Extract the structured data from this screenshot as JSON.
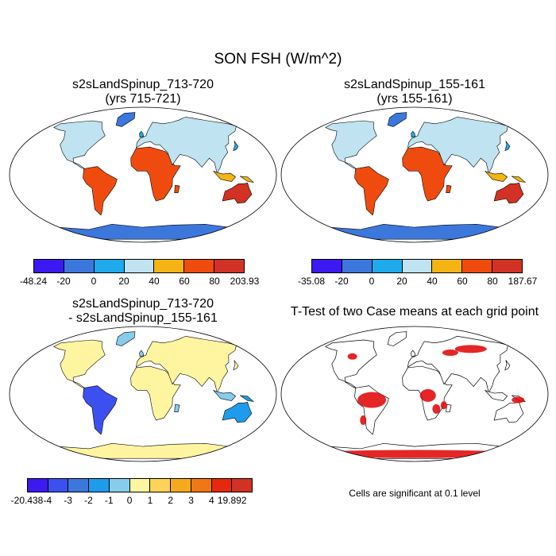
{
  "title": "SON FSH (W/m^2)",
  "panels": [
    {
      "title_line1": "s2sLandSpinup_713-720",
      "title_line2": "(yrs 715-721)",
      "colorbar": {
        "labels": [
          "-48.24",
          "-20",
          "0",
          "20",
          "40",
          "60",
          "80",
          "203.93"
        ],
        "colors": [
          "#3c19f0",
          "#3c78dc",
          "#1eaaeb",
          "#bfe3f0",
          "#f5b414",
          "#f04b0f",
          "#d23223"
        ]
      }
    },
    {
      "title_line1": "s2sLandSpinup_155-161",
      "title_line2": "(yrs 155-161)",
      "colorbar": {
        "labels": [
          "-35.08",
          "-20",
          "0",
          "20",
          "40",
          "60",
          "80",
          "187.67"
        ],
        "colors": [
          "#3c19f0",
          "#3c78dc",
          "#1eaaeb",
          "#bfe3f0",
          "#f5b414",
          "#f04b0f",
          "#d23223"
        ]
      }
    },
    {
      "title_line1": "s2sLandSpinup_713-720",
      "title_line2": "- s2sLandSpinup_155-161",
      "colorbar": {
        "labels": [
          "-20.438",
          "-4",
          "-3",
          "-2",
          "-1",
          "0",
          "1",
          "2",
          "3",
          "4",
          "19.892"
        ],
        "colors": [
          "#3c19f0",
          "#3c50f0",
          "#3c78dc",
          "#1e9beb",
          "#87cdeb",
          "#fff5a0",
          "#ffd25a",
          "#f5aa1e",
          "#f07814",
          "#e6280f",
          "#d23223"
        ]
      }
    },
    {
      "title_line1": "T-Test of two Case means at each grid point",
      "note": "Cells are significant at 0.1 level"
    }
  ]
}
